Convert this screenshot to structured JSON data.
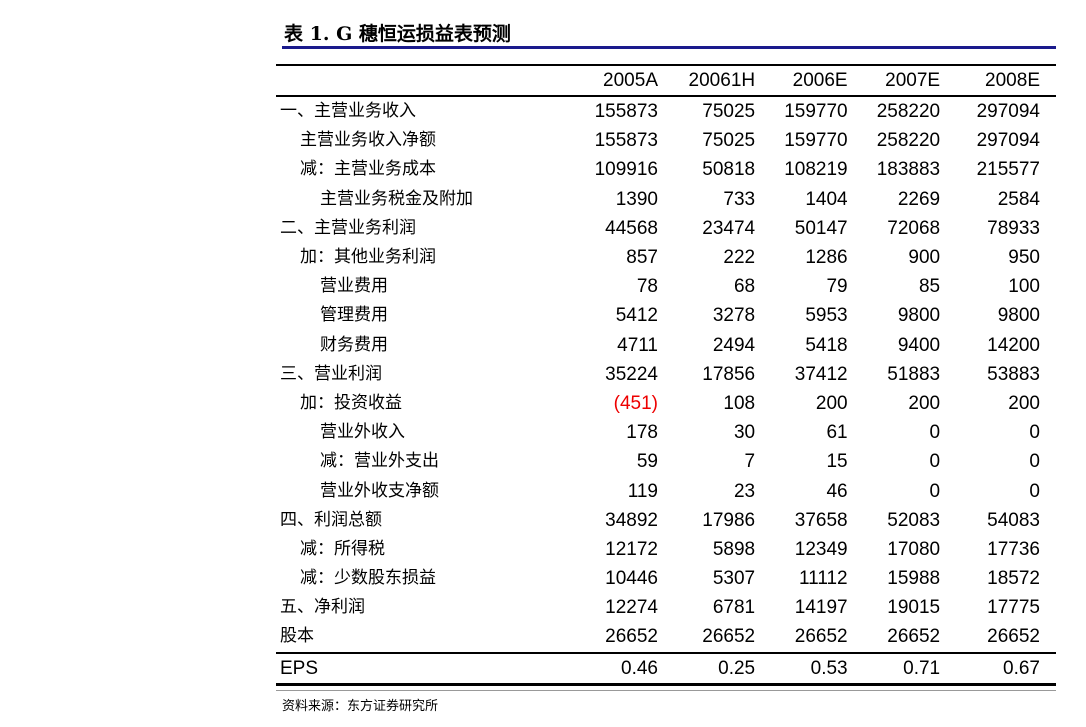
{
  "title": "表 1. G 穗恒运损益表预测",
  "columns": [
    "2005A",
    "20061H",
    "2006E",
    "2007E",
    "2008E"
  ],
  "rows": [
    {
      "label": "一、主营业务收入",
      "level": 0,
      "values": [
        "155873",
        "75025",
        "159770",
        "258220",
        "297094"
      ]
    },
    {
      "label": "主营业务收入净额",
      "level": 1,
      "values": [
        "155873",
        "75025",
        "159770",
        "258220",
        "297094"
      ]
    },
    {
      "label": "减：主营业务成本",
      "level": 1,
      "values": [
        "109916",
        "50818",
        "108219",
        "183883",
        "215577"
      ]
    },
    {
      "label": "主营业务税金及附加",
      "level": 2,
      "values": [
        "1390",
        "733",
        "1404",
        "2269",
        "2584"
      ]
    },
    {
      "label": "二、主营业务利润",
      "level": 0,
      "values": [
        "44568",
        "23474",
        "50147",
        "72068",
        "78933"
      ]
    },
    {
      "label": "加：其他业务利润",
      "level": 1,
      "values": [
        "857",
        "222",
        "1286",
        "900",
        "950"
      ]
    },
    {
      "label": "营业费用",
      "level": 2,
      "values": [
        "78",
        "68",
        "79",
        "85",
        "100"
      ]
    },
    {
      "label": "管理费用",
      "level": 2,
      "values": [
        "5412",
        "3278",
        "5953",
        "9800",
        "9800"
      ]
    },
    {
      "label": "财务费用",
      "level": 2,
      "values": [
        "4711",
        "2494",
        "5418",
        "9400",
        "14200"
      ]
    },
    {
      "label": "三、营业利润",
      "level": 0,
      "values": [
        "35224",
        "17856",
        "37412",
        "51883",
        "53883"
      ]
    },
    {
      "label": "加：投资收益",
      "level": 1,
      "values": [
        "(451)",
        "108",
        "200",
        "200",
        "200"
      ]
    },
    {
      "label": "营业外收入",
      "level": 2,
      "values": [
        "178",
        "30",
        "61",
        "0",
        "0"
      ]
    },
    {
      "label": "减：营业外支出",
      "level": 2,
      "values": [
        "59",
        "7",
        "15",
        "0",
        "0"
      ]
    },
    {
      "label": "营业外收支净额",
      "level": 2,
      "values": [
        "119",
        "23",
        "46",
        "0",
        "0"
      ]
    },
    {
      "label": "四、利润总额",
      "level": 0,
      "values": [
        "34892",
        "17986",
        "37658",
        "52083",
        "54083"
      ]
    },
    {
      "label": "减：所得税",
      "level": 1,
      "values": [
        "12172",
        "5898",
        "12349",
        "17080",
        "17736"
      ]
    },
    {
      "label": "减：少数股东损益",
      "level": 1,
      "values": [
        "10446",
        "5307",
        "11112",
        "15988",
        "18572"
      ]
    },
    {
      "label": "五、净利润",
      "level": 0,
      "values": [
        "12274",
        "6781",
        "14197",
        "19015",
        "17775"
      ]
    },
    {
      "label": "股本",
      "level": 0,
      "values": [
        "26652",
        "26652",
        "26652",
        "26652",
        "26652"
      ]
    },
    {
      "label": "EPS",
      "level": 0,
      "values": [
        "0.46",
        "0.25",
        "0.53",
        "0.71",
        "0.67"
      ]
    }
  ],
  "negative_color": "#e00000",
  "title_rule_color": "#1a1a8c",
  "source": "资料来源：东方证券研究所"
}
